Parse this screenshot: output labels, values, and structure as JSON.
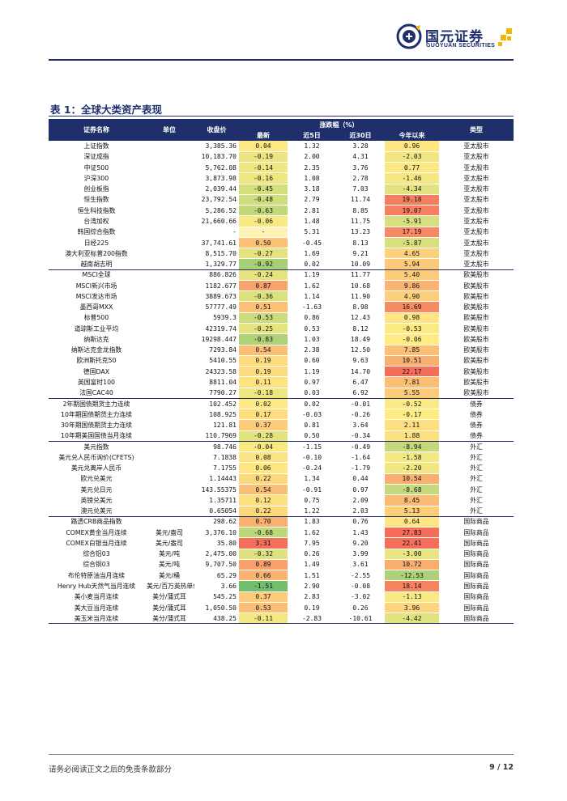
{
  "header": {
    "brand_cn": "国元证券",
    "brand_en": "GUOYUAN SECURITIES",
    "brand_color": "#1f2f6b"
  },
  "table_title": "表 1：全球大类资产表现",
  "table": {
    "columns": {
      "name": "证券名称",
      "unit": "单位",
      "close": "收盘价",
      "change_group": "涨跌幅（%）",
      "latest": "最新",
      "d5": "近5日",
      "d30": "近30日",
      "ytd": "今年以来",
      "type": "类型"
    },
    "rows": [
      {
        "name": "上证指数",
        "unit": "",
        "close": "3,385.36",
        "latest": "0.04",
        "d5": "1.32",
        "d30": "3.28",
        "ytd": "0.96",
        "type": "亚太股市"
      },
      {
        "name": "深证成指",
        "unit": "",
        "close": "10,183.70",
        "latest": "-0.19",
        "d5": "2.00",
        "d30": "4.31",
        "ytd": "-2.03",
        "type": "亚太股市"
      },
      {
        "name": "中证500",
        "unit": "",
        "close": "5,762.08",
        "latest": "-0.14",
        "d5": "2.35",
        "d30": "3.76",
        "ytd": "0.77",
        "type": "亚太股市"
      },
      {
        "name": "沪深300",
        "unit": "",
        "close": "3,873.98",
        "latest": "-0.16",
        "d5": "1.08",
        "d30": "2.78",
        "ytd": "-1.46",
        "type": "亚太股市"
      },
      {
        "name": "创业板指",
        "unit": "",
        "close": "2,039.44",
        "latest": "-0.45",
        "d5": "3.18",
        "d30": "7.03",
        "ytd": "-4.34",
        "type": "亚太股市"
      },
      {
        "name": "恒生指数",
        "unit": "",
        "close": "23,792.54",
        "latest": "-0.48",
        "d5": "2.79",
        "d30": "11.74",
        "ytd": "19.18",
        "type": "亚太股市"
      },
      {
        "name": "恒生科技指数",
        "unit": "",
        "close": "5,286.52",
        "latest": "-0.63",
        "d5": "2.81",
        "d30": "8.85",
        "ytd": "19.07",
        "type": "亚太股市"
      },
      {
        "name": "台湾加权",
        "unit": "",
        "close": "21,660.66",
        "latest": "-0.06",
        "d5": "1.48",
        "d30": "11.75",
        "ytd": "-5.91",
        "type": "亚太股市"
      },
      {
        "name": "韩国综合指数",
        "unit": "",
        "close": "-",
        "latest": "-",
        "d5": "5.31",
        "d30": "13.23",
        "ytd": "17.19",
        "type": "亚太股市"
      },
      {
        "name": "日经225",
        "unit": "",
        "close": "37,741.61",
        "latest": "0.50",
        "d5": "-0.45",
        "d30": "8.13",
        "ytd": "-5.87",
        "type": "亚太股市"
      },
      {
        "name": "澳大利亚标普200指数",
        "unit": "",
        "close": "8,515.70",
        "latest": "-0.27",
        "d5": "1.69",
        "d30": "9.21",
        "ytd": "4.65",
        "type": "亚太股市"
      },
      {
        "name": "越南胡志明",
        "unit": "",
        "close": "1,329.77",
        "latest": "-0.92",
        "d5": "0.02",
        "d30": "10.09",
        "ytd": "5.94",
        "type": "亚太股市"
      },
      {
        "name": "MSCI全球",
        "unit": "",
        "close": "886.826",
        "latest": "-0.24",
        "d5": "1.19",
        "d30": "11.77",
        "ytd": "5.40",
        "type": "欧美股市"
      },
      {
        "name": "MSCI新兴市场",
        "unit": "",
        "close": "1182.677",
        "latest": "0.87",
        "d5": "1.62",
        "d30": "10.68",
        "ytd": "9.86",
        "type": "欧美股市"
      },
      {
        "name": "MSCI发达市场",
        "unit": "",
        "close": "3889.673",
        "latest": "-0.36",
        "d5": "1.14",
        "d30": "11.90",
        "ytd": "4.90",
        "type": "欧美股市"
      },
      {
        "name": "墨西哥MXX",
        "unit": "",
        "close": "57777.49",
        "latest": "0.51",
        "d5": "-1.63",
        "d30": "8.98",
        "ytd": "16.69",
        "type": "欧美股市"
      },
      {
        "name": "标普500",
        "unit": "",
        "close": "5939.3",
        "latest": "-0.53",
        "d5": "0.86",
        "d30": "12.43",
        "ytd": "0.98",
        "type": "欧美股市"
      },
      {
        "name": "道琼斯工业平均",
        "unit": "",
        "close": "42319.74",
        "latest": "-0.25",
        "d5": "0.53",
        "d30": "8.12",
        "ytd": "-0.53",
        "type": "欧美股市"
      },
      {
        "name": "纳斯达克",
        "unit": "",
        "close": "19298.447",
        "latest": "-0.83",
        "d5": "1.03",
        "d30": "18.49",
        "ytd": "-0.06",
        "type": "欧美股市"
      },
      {
        "name": "纳斯达克金龙指数",
        "unit": "",
        "close": "7293.84",
        "latest": "0.54",
        "d5": "2.38",
        "d30": "12.50",
        "ytd": "7.85",
        "type": "欧美股市"
      },
      {
        "name": "欧洲斯托克50",
        "unit": "",
        "close": "5410.55",
        "latest": "0.19",
        "d5": "0.60",
        "d30": "9.63",
        "ytd": "10.51",
        "type": "欧美股市"
      },
      {
        "name": "德国DAX",
        "unit": "",
        "close": "24323.58",
        "latest": "0.19",
        "d5": "1.19",
        "d30": "14.70",
        "ytd": "22.17",
        "type": "欧美股市"
      },
      {
        "name": "英国富时100",
        "unit": "",
        "close": "8811.04",
        "latest": "0.11",
        "d5": "0.97",
        "d30": "6.47",
        "ytd": "7.81",
        "type": "欧美股市"
      },
      {
        "name": "法国CAC40",
        "unit": "",
        "close": "7790.27",
        "latest": "-0.18",
        "d5": "0.03",
        "d30": "6.92",
        "ytd": "5.55",
        "type": "欧美股市"
      },
      {
        "name": "2年期国债期货主力连续",
        "unit": "",
        "close": "102.452",
        "latest": "0.02",
        "d5": "0.02",
        "d30": "-0.01",
        "ytd": "-0.52",
        "type": "债券"
      },
      {
        "name": "10年期国债期货主力连续",
        "unit": "",
        "close": "108.925",
        "latest": "0.17",
        "d5": "-0.03",
        "d30": "-0.26",
        "ytd": "-0.17",
        "type": "债券"
      },
      {
        "name": "30年期国债期货主力连续",
        "unit": "",
        "close": "121.81",
        "latest": "0.37",
        "d5": "0.81",
        "d30": "3.64",
        "ytd": "2.11",
        "type": "债券"
      },
      {
        "name": "10年期美国国债当月连续",
        "unit": "",
        "close": "110.7969",
        "latest": "-0.28",
        "d5": "0.50",
        "d30": "-0.34",
        "ytd": "1.88",
        "type": "债券"
      },
      {
        "name": "美元指数",
        "unit": "",
        "close": "98.746",
        "latest": "-0.04",
        "d5": "-1.15",
        "d30": "-0.49",
        "ytd": "-8.94",
        "type": "外汇"
      },
      {
        "name": "美元兑人民币询价(CFETS)",
        "unit": "",
        "close": "7.1838",
        "latest": "0.08",
        "d5": "-0.10",
        "d30": "-1.64",
        "ytd": "-1.58",
        "type": "外汇"
      },
      {
        "name": "美元兑离岸人民币",
        "unit": "",
        "close": "7.1755",
        "latest": "0.06",
        "d5": "-0.24",
        "d30": "-1.79",
        "ytd": "-2.20",
        "type": "外汇"
      },
      {
        "name": "欧元兑美元",
        "unit": "",
        "close": "1.14443",
        "latest": "0.22",
        "d5": "1.34",
        "d30": "0.44",
        "ytd": "10.54",
        "type": "外汇"
      },
      {
        "name": "美元兑日元",
        "unit": "",
        "close": "143.55375",
        "latest": "0.54",
        "d5": "-0.91",
        "d30": "0.97",
        "ytd": "-8.68",
        "type": "外汇"
      },
      {
        "name": "英镑兑美元",
        "unit": "",
        "close": "1.35711",
        "latest": "0.12",
        "d5": "0.75",
        "d30": "2.09",
        "ytd": "8.45",
        "type": "外汇"
      },
      {
        "name": "澳元兑美元",
        "unit": "",
        "close": "0.65054",
        "latest": "0.22",
        "d5": "1.22",
        "d30": "2.03",
        "ytd": "5.13",
        "type": "外汇"
      },
      {
        "name": "路透CRB商品指数",
        "unit": "",
        "close": "298.62",
        "latest": "0.70",
        "d5": "1.83",
        "d30": "0.76",
        "ytd": "0.64",
        "type": "国际商品"
      },
      {
        "name": "COMEX黄金当月连续",
        "unit": "美元/盎司",
        "close": "3,376.10",
        "latest": "-0.68",
        "d5": "1.62",
        "d30": "1.43",
        "ytd": "27.83",
        "type": "国际商品"
      },
      {
        "name": "COMEX白银当月连续",
        "unit": "美元/盎司",
        "close": "35.80",
        "latest": "3.31",
        "d5": "7.95",
        "d30": "9.20",
        "ytd": "22.41",
        "type": "国际商品"
      },
      {
        "name": "综合铝03",
        "unit": "美元/吨",
        "close": "2,475.00",
        "latest": "-0.32",
        "d5": "0.26",
        "d30": "3.99",
        "ytd": "-3.00",
        "type": "国际商品"
      },
      {
        "name": "综合铜03",
        "unit": "美元/吨",
        "close": "9,707.50",
        "latest": "0.89",
        "d5": "1.49",
        "d30": "3.61",
        "ytd": "10.72",
        "type": "国际商品"
      },
      {
        "name": "布伦特原油当月连续",
        "unit": "美元/桶",
        "close": "65.29",
        "latest": "0.66",
        "d5": "1.51",
        "d30": "-2.55",
        "ytd": "-12.53",
        "type": "国际商品"
      },
      {
        "name": "Henry Hub天然气当月连续",
        "unit": "美元/百万英热单位",
        "close": "3.66",
        "latest": "-1.51",
        "d5": "2.90",
        "d30": "-0.08",
        "ytd": "18.14",
        "type": "国际商品"
      },
      {
        "name": "美小麦当月连续",
        "unit": "美分/蒲式耳",
        "close": "545.25",
        "latest": "0.37",
        "d5": "2.83",
        "d30": "-3.02",
        "ytd": "-1.13",
        "type": "国际商品"
      },
      {
        "name": "美大豆当月连续",
        "unit": "美分/蒲式耳",
        "close": "1,050.50",
        "latest": "0.53",
        "d5": "0.19",
        "d30": "0.26",
        "ytd": "3.96",
        "type": "国际商品"
      },
      {
        "name": "美玉米当月连续",
        "unit": "美分/蒲式耳",
        "close": "438.25",
        "latest": "-0.11",
        "d5": "-2.83",
        "d30": "-10.61",
        "ytd": "-4.42",
        "type": "国际商品"
      }
    ]
  },
  "footer": {
    "disclaimer": "请务必阅读正文之后的免责条款部分",
    "page": "9 / 12"
  }
}
